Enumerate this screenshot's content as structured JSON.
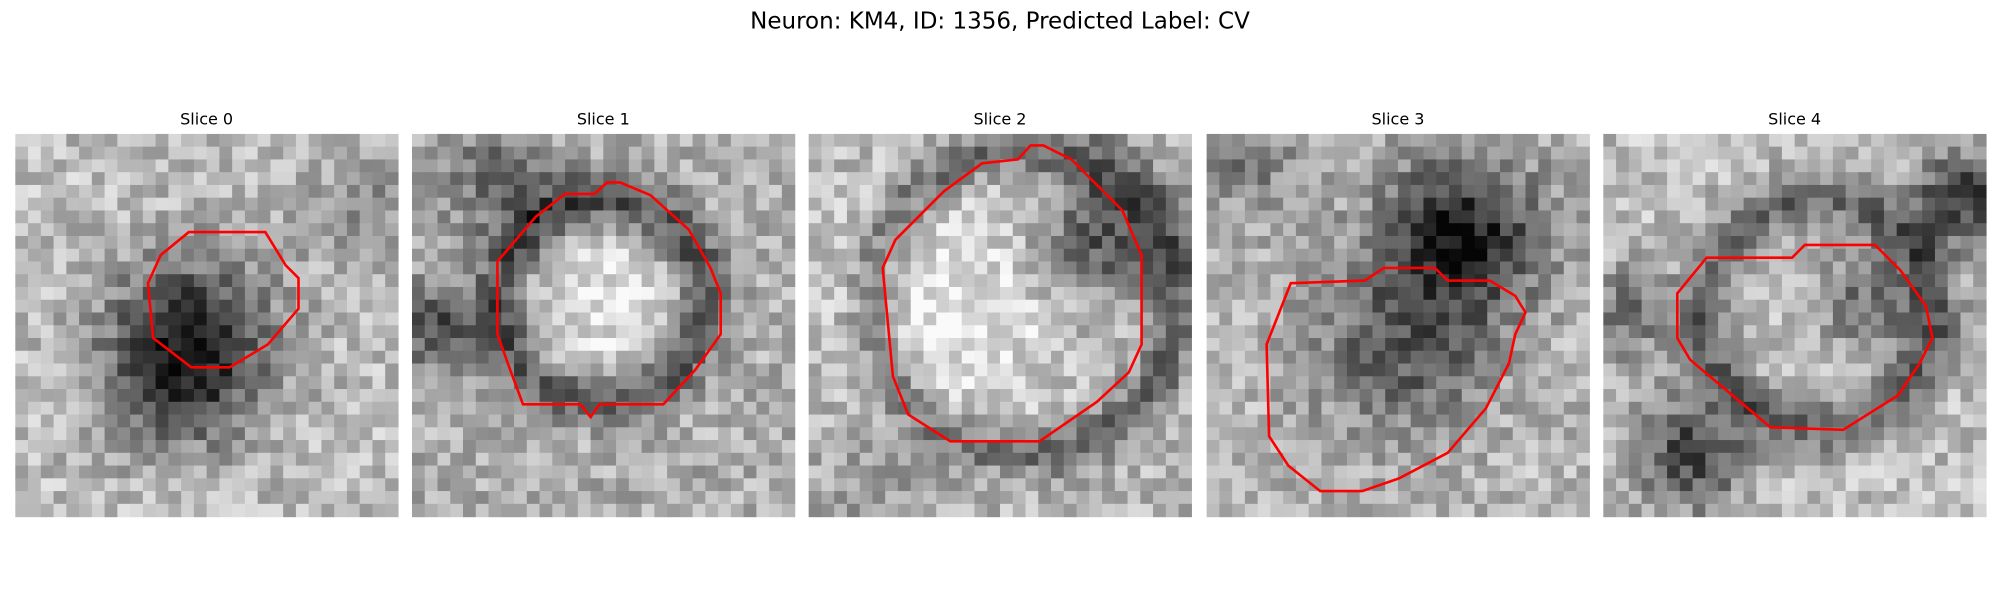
{
  "title": "Neuron: KM4, ID: 1356, Predicted Label: CV",
  "panels": [
    {
      "title": "Slice 0"
    },
    {
      "title": "Slice 1"
    },
    {
      "title": "Slice 2"
    },
    {
      "title": "Slice 3"
    },
    {
      "title": "Slice 4"
    }
  ]
}
